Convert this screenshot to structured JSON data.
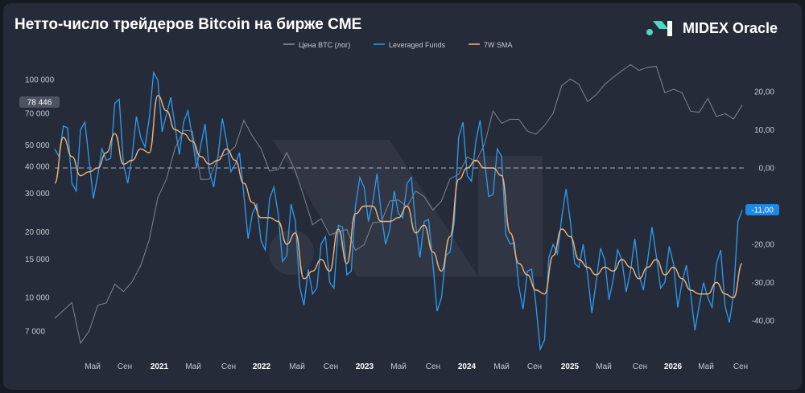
{
  "header": {
    "title": "Нетто-число трейдеров Bitcoin на бирже CME",
    "brand": "MIDEX Oracle"
  },
  "colors": {
    "background": "#262b3a",
    "btc": "#8a8f9a",
    "funds": "#2c9cf0",
    "sma": "#f2b476",
    "zero_line": "#c9ccd3",
    "badge_btc": "#4e5361",
    "badge_funds": "#1e88e5"
  },
  "chart_data": {
    "type": "line",
    "title": "Нетто-число трейдеров Bitcoin на бирже CME",
    "legend": [
      "Цена BTC (лог)",
      "Leveraged Funds",
      "7W SMA"
    ],
    "legend_position": "top-center",
    "x_labels": [
      "Май",
      "Сен",
      "2021",
      "Май",
      "Сен",
      "2022",
      "Май",
      "Сен",
      "2023",
      "Май",
      "Сен",
      "2024",
      "Май",
      "Сен",
      "2025",
      "Май",
      "Сен",
      "2026",
      "Май",
      "Сен"
    ],
    "x_range": [
      "2020-01",
      "2026-09"
    ],
    "y_left": {
      "scale": "log",
      "range": [
        5000,
        130000
      ],
      "ticks": [
        100000,
        70000,
        50000,
        40000,
        30000,
        20000,
        15000,
        10000,
        7000
      ],
      "tick_labels": [
        "100 000",
        "70 000",
        "50 000",
        "40 000",
        "30 000",
        "20 000",
        "15 000",
        "10 000",
        "7 000"
      ]
    },
    "y_right": {
      "range": [
        -45,
        25
      ],
      "ticks": [
        20,
        10,
        0,
        -20,
        -30,
        -40
      ],
      "tick_labels": [
        "20,00",
        "10,00",
        "0,00",
        "-20,00",
        "-30,00",
        "-40,00"
      ]
    },
    "zero_line": true,
    "badges": {
      "btc_last": "78 446",
      "funds_last": "-11,00"
    },
    "series": [
      {
        "name": "Цена BTC (лог)",
        "axis": "left",
        "x": [
          "2020-01",
          "2020-03",
          "2020-04",
          "2020-05",
          "2020-06",
          "2020-07",
          "2020-08",
          "2020-09",
          "2020-10",
          "2020-11",
          "2020-12",
          "2021-01",
          "2021-02",
          "2021-03",
          "2021-04",
          "2021-05",
          "2021-06",
          "2021-07",
          "2021-08",
          "2021-09",
          "2021-10",
          "2021-11",
          "2021-12",
          "2022-01",
          "2022-02",
          "2022-03",
          "2022-04",
          "2022-05",
          "2022-06",
          "2022-07",
          "2022-08",
          "2022-09",
          "2022-10",
          "2022-11",
          "2022-12",
          "2023-01",
          "2023-02",
          "2023-03",
          "2023-04",
          "2023-05",
          "2023-06",
          "2023-07",
          "2023-08",
          "2023-09",
          "2023-10",
          "2023-11",
          "2023-12",
          "2024-01",
          "2024-02",
          "2024-03",
          "2024-04",
          "2024-05",
          "2024-06",
          "2024-07",
          "2024-08",
          "2024-09",
          "2024-10",
          "2024-11",
          "2024-12",
          "2025-01",
          "2025-02",
          "2025-03",
          "2025-04",
          "2025-05",
          "2025-06",
          "2025-07",
          "2025-08",
          "2025-09",
          "2025-10",
          "2025-11",
          "2025-12",
          "2026-01",
          "2026-02",
          "2026-03",
          "2026-04",
          "2026-05",
          "2026-06",
          "2026-07",
          "2026-08",
          "2026-09"
        ],
        "values": [
          8000,
          9800,
          6000,
          7000,
          9500,
          9200,
          11500,
          11000,
          11500,
          14000,
          19000,
          28000,
          35000,
          50000,
          57000,
          58000,
          36000,
          34000,
          44000,
          47000,
          48000,
          65000,
          57000,
          47000,
          38000,
          40000,
          45000,
          38000,
          30000,
          21000,
          23000,
          20000,
          19500,
          20500,
          17000,
          17000,
          22000,
          23000,
          27000,
          28000,
          27000,
          30000,
          29000,
          26000,
          27000,
          35000,
          38000,
          43000,
          42000,
          52000,
          70000,
          63000,
          68000,
          64000,
          58000,
          58000,
          60000,
          70000,
          97000,
          98000,
          95000,
          82000,
          83000,
          95000,
          106000,
          107000,
          117000,
          114000,
          111000,
          115000,
          90000,
          88000,
          87000,
          74000,
          69000,
          82000,
          70000,
          68000,
          66000,
          79000
        ]
      },
      {
        "name": "Leveraged Funds",
        "axis": "right",
        "x": [
          "2020-01",
          "2020-02",
          "2020-03",
          "2020-04",
          "2020-05",
          "2020-06",
          "2020-07",
          "2020-08",
          "2020-09",
          "2020-10",
          "2020-11",
          "2020-12",
          "2021-01",
          "2021-02",
          "2021-03",
          "2021-04",
          "2021-05",
          "2021-06",
          "2021-07",
          "2021-08",
          "2021-09",
          "2021-10",
          "2021-11",
          "2021-12",
          "2022-01",
          "2022-02",
          "2022-03",
          "2022-04",
          "2022-05",
          "2022-06",
          "2022-07",
          "2022-08",
          "2022-09",
          "2022-10",
          "2022-11",
          "2022-12",
          "2023-01",
          "2023-02",
          "2023-03",
          "2023-04",
          "2023-05",
          "2023-06",
          "2023-07",
          "2023-08",
          "2023-09",
          "2023-10",
          "2023-11",
          "2023-12",
          "2024-01",
          "2024-02",
          "2024-03",
          "2024-04",
          "2024-05",
          "2024-06",
          "2024-07",
          "2024-08",
          "2024-09",
          "2024-10",
          "2024-11",
          "2024-12",
          "2025-01",
          "2025-02",
          "2025-03",
          "2025-04",
          "2025-05",
          "2025-06",
          "2025-07",
          "2025-08",
          "2025-09",
          "2025-10",
          "2025-11",
          "2025-12",
          "2026-01",
          "2026-02",
          "2026-03",
          "2026-04",
          "2026-05",
          "2026-06",
          "2026-07",
          "2026-08",
          "2026-09"
        ],
        "values": [
          5,
          11,
          -4,
          10,
          2,
          -2,
          2,
          17,
          1,
          3,
          8,
          13,
          23,
          14,
          11,
          12,
          8,
          6,
          -1,
          3,
          7,
          1,
          -7,
          -12,
          -19,
          -8,
          -12,
          -23,
          -14,
          -36,
          -33,
          -20,
          -30,
          -15,
          -28,
          -10,
          -5,
          -9,
          -12,
          -16,
          -12,
          -4,
          -15,
          -14,
          -25,
          -34,
          -22,
          8,
          -2,
          7,
          2,
          -7,
          3,
          -20,
          -31,
          -27,
          -36,
          -45,
          -20,
          -13,
          -14,
          -26,
          -28,
          -30,
          -24,
          -29,
          -24,
          -27,
          -28,
          -24,
          -23,
          -30,
          -25,
          -30,
          -33,
          -36,
          -34,
          -25,
          -36,
          -33,
          -11
        ]
      },
      {
        "name": "7W SMA",
        "axis": "right",
        "x": [
          "2020-01",
          "2020-02",
          "2020-03",
          "2020-04",
          "2020-05",
          "2020-06",
          "2020-07",
          "2020-08",
          "2020-09",
          "2020-10",
          "2020-11",
          "2020-12",
          "2021-01",
          "2021-02",
          "2021-03",
          "2021-04",
          "2021-05",
          "2021-06",
          "2021-07",
          "2021-08",
          "2021-09",
          "2021-10",
          "2021-11",
          "2021-12",
          "2022-01",
          "2022-02",
          "2022-03",
          "2022-04",
          "2022-05",
          "2022-06",
          "2022-07",
          "2022-08",
          "2022-09",
          "2022-10",
          "2022-11",
          "2022-12",
          "2023-01",
          "2023-02",
          "2023-03",
          "2023-04",
          "2023-05",
          "2023-06",
          "2023-07",
          "2023-08",
          "2023-09",
          "2023-10",
          "2023-11",
          "2023-12",
          "2024-01",
          "2024-02",
          "2024-03",
          "2024-04",
          "2024-05",
          "2024-06",
          "2024-07",
          "2024-08",
          "2024-09",
          "2024-10",
          "2024-11",
          "2024-12",
          "2025-01",
          "2025-02",
          "2025-03",
          "2025-04",
          "2025-05",
          "2025-06",
          "2025-07",
          "2025-08",
          "2025-09",
          "2025-10",
          "2025-11",
          "2025-12",
          "2026-01",
          "2026-02",
          "2026-03",
          "2026-04",
          "2026-05",
          "2026-06",
          "2026-07",
          "2026-08",
          "2026-09"
        ],
        "values": [
          -4,
          8,
          3,
          -2,
          -1,
          0,
          4,
          9,
          1,
          2,
          5,
          4,
          19,
          15,
          10,
          9,
          7,
          3,
          1,
          2,
          5,
          2,
          -4,
          -9,
          -13,
          -13,
          -14,
          -20,
          -17,
          -29,
          -27,
          -24,
          -27,
          -16,
          -25,
          -12,
          -10,
          -10,
          -14,
          -14,
          -13,
          -10,
          -17,
          -15,
          -22,
          -27,
          -18,
          -3,
          0,
          2,
          0,
          0,
          -2,
          -17,
          -25,
          -28,
          -32,
          -33,
          -23,
          -16,
          -18,
          -24,
          -26,
          -28,
          -26,
          -27,
          -24,
          -26,
          -29,
          -26,
          -24,
          -28,
          -26,
          -29,
          -32,
          -33,
          -33,
          -30,
          -33,
          -34,
          -25
        ]
      }
    ]
  }
}
